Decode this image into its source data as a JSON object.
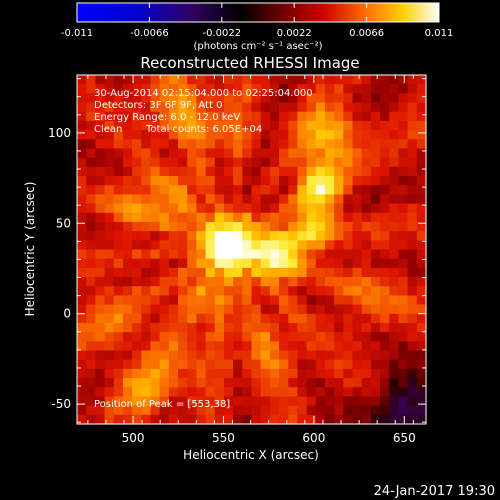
{
  "colorbar": {
    "ticks": [
      "-0.011",
      "-0.0066",
      "-0.0022",
      "0.0022",
      "0.0066",
      "0.011"
    ],
    "unit_label": "(photons cm⁻² s⁻¹ asec⁻²)",
    "vmin": -0.011,
    "vmax": 0.011
  },
  "chart_data": {
    "type": "heatmap",
    "title": "Reconstructed RHESSI Image",
    "xlabel": "Heliocentric X (arcsec)",
    "ylabel": "Heliocentric Y (arcsec)",
    "xlim": [
      469,
      662
    ],
    "ylim": [
      -61,
      132
    ],
    "xticks": [
      500,
      550,
      600,
      650
    ],
    "yticks": [
      -50,
      0,
      50,
      100
    ],
    "colormap": "RHESSI red-temperature",
    "peak": {
      "x": 553,
      "y": 38
    },
    "sources": [
      {
        "x": 553,
        "y": 38,
        "sigma": 10,
        "amp": 0.011
      },
      {
        "x": 580,
        "y": 32,
        "sigma": 10,
        "amp": 0.0075
      },
      {
        "x": 600,
        "y": 48,
        "sigma": 8,
        "amp": 0.0055
      },
      {
        "x": 603,
        "y": 70,
        "sigma": 9,
        "amp": 0.0065
      },
      {
        "x": 608,
        "y": 98,
        "sigma": 11,
        "amp": 0.005
      },
      {
        "x": 523,
        "y": 62,
        "sigma": 12,
        "amp": 0.0032
      },
      {
        "x": 500,
        "y": 60,
        "sigma": 10,
        "amp": 0.0025
      },
      {
        "x": 540,
        "y": 10,
        "sigma": 14,
        "amp": 0.0025
      },
      {
        "x": 505,
        "y": -42,
        "sigma": 10,
        "amp": 0.0028
      },
      {
        "x": 525,
        "y": -30,
        "sigma": 12,
        "amp": 0.0022
      },
      {
        "x": 545,
        "y": 105,
        "sigma": 12,
        "amp": 0.0025
      },
      {
        "x": 575,
        "y": -20,
        "sigma": 14,
        "amp": 0.0022
      },
      {
        "x": 520,
        "y": 115,
        "sigma": 14,
        "amp": 0.0022
      },
      {
        "x": 630,
        "y": 10,
        "sigma": 14,
        "amp": 0.0018
      },
      {
        "x": 490,
        "y": 0,
        "sigma": 15,
        "amp": 0.002
      }
    ],
    "negative_region": {
      "x": 650,
      "y": -55,
      "sigma": 14,
      "amp": -0.005
    },
    "background": 0.0026
  },
  "annotations": {
    "time_range": "30-Aug-2014 02:15:04.000 to 02:25:04.000",
    "detectors": "Detectors: 3F 6F 9F, Att 0",
    "energy": "Energy Range: 6.0 - 12.0 keV",
    "method": "Clean",
    "counts": "Total counts: 6.05E+04",
    "peak_label": "Position of Peak = [553,38]"
  },
  "footer": {
    "date": "24-Jan-2017 19:30"
  }
}
